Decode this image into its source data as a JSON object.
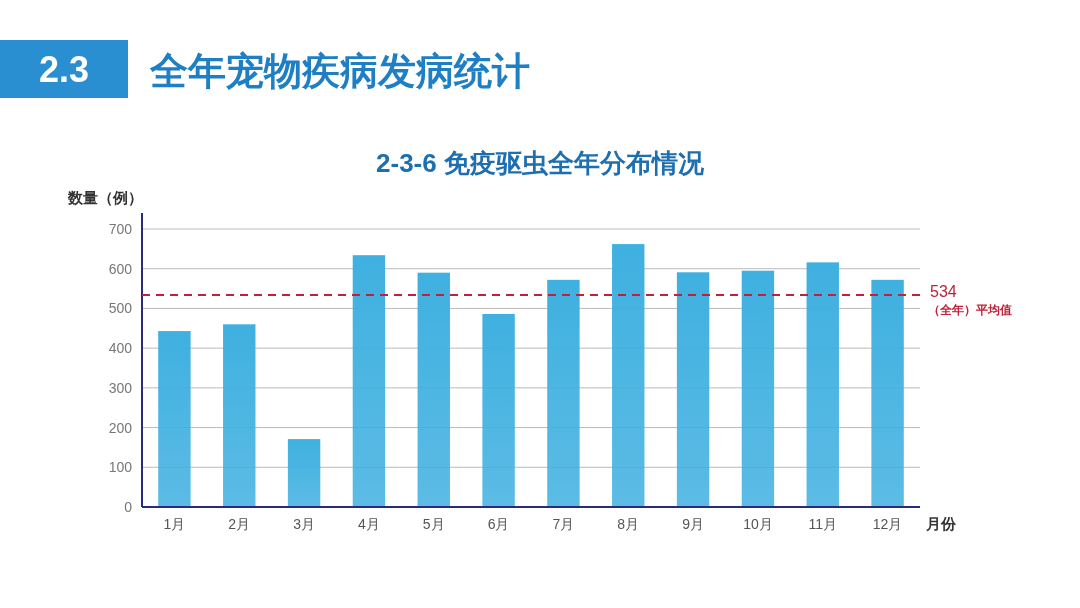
{
  "chart_data": {
    "type": "bar",
    "title": "全年宠物疾病发病统计",
    "subtitle": "2-3-6 免疫驱虫全年分布情况",
    "annotations": [
      "2.3",
      "（全年）平均值"
    ],
    "xlabel": "月份",
    "ylabel": "数量（例）",
    "categories": [
      "1月",
      "2月",
      "3月",
      "4月",
      "5月",
      "6月",
      "7月",
      "8月",
      "9月",
      "10月",
      "11月",
      "12月"
    ],
    "values": [
      443,
      460,
      171,
      634,
      590,
      486,
      572,
      662,
      591,
      595,
      616,
      572
    ],
    "color": "#3fb0e0",
    "ylim": [
      0,
      700
    ],
    "yticks": [
      0,
      100,
      200,
      300,
      400,
      500,
      600,
      700
    ],
    "grid": "y",
    "ref_lines": [
      {
        "axis": "y",
        "value": 534,
        "label": "534",
        "color": "#c0203a",
        "line_style": "dashed"
      }
    ]
  }
}
